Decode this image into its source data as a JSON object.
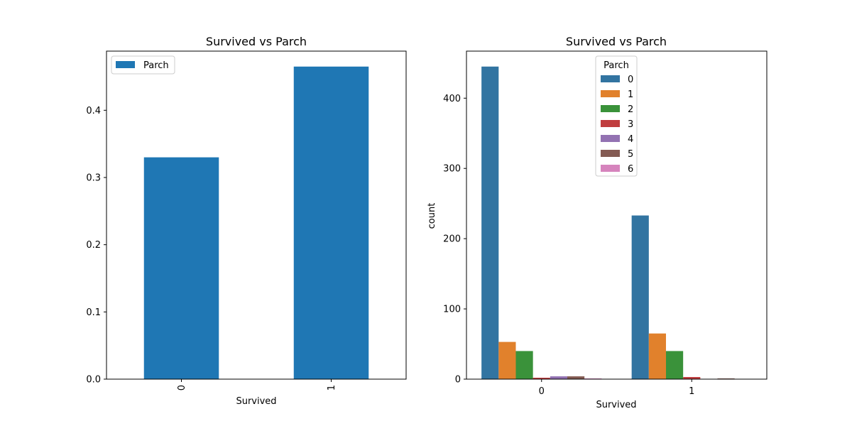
{
  "chart_data": [
    {
      "type": "bar",
      "title": "Survived vs Parch",
      "xlabel": "Survived",
      "ylabel": "",
      "categories": [
        "0",
        "1"
      ],
      "series": [
        {
          "name": "Parch",
          "values": [
            0.33,
            0.465
          ],
          "color": "#1f77b4"
        }
      ],
      "ylim": [
        0,
        0.488
      ],
      "yticks": [
        "0.0",
        "0.1",
        "0.2",
        "0.3",
        "0.4"
      ],
      "legend": {
        "position": "top-left",
        "entries": [
          "Parch"
        ]
      },
      "grid": false
    },
    {
      "type": "bar",
      "title": "Survived vs Parch",
      "xlabel": "Survived",
      "ylabel": "count",
      "categories": [
        "0",
        "1"
      ],
      "series": [
        {
          "name": "0",
          "values": [
            445,
            233
          ],
          "color": "#3274a1"
        },
        {
          "name": "1",
          "values": [
            53,
            65
          ],
          "color": "#e1812c"
        },
        {
          "name": "2",
          "values": [
            40,
            40
          ],
          "color": "#3a923a"
        },
        {
          "name": "3",
          "values": [
            2,
            3
          ],
          "color": "#c03d3e"
        },
        {
          "name": "4",
          "values": [
            4,
            0
          ],
          "color": "#9372b2"
        },
        {
          "name": "5",
          "values": [
            4,
            1
          ],
          "color": "#845b53"
        },
        {
          "name": "6",
          "values": [
            1,
            0
          ],
          "color": "#d684bd"
        }
      ],
      "ylim": [
        0,
        467
      ],
      "yticks": [
        "0",
        "100",
        "200",
        "300",
        "400"
      ],
      "legend": {
        "position": "top-center",
        "title": "Parch",
        "entries": [
          "0",
          "1",
          "2",
          "3",
          "4",
          "5",
          "6"
        ]
      },
      "grid": false
    }
  ]
}
